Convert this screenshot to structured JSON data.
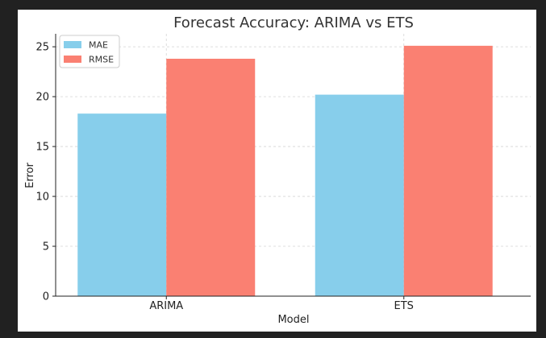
{
  "chart_data": {
    "type": "bar",
    "title": "Forecast Accuracy: ARIMA vs ETS",
    "xlabel": "Model",
    "ylabel": "Error",
    "categories": [
      "ARIMA",
      "ETS"
    ],
    "series": [
      {
        "name": "MAE",
        "values": [
          18.3,
          20.2
        ],
        "color": "#87ceeb"
      },
      {
        "name": "RMSE",
        "values": [
          23.8,
          25.1
        ],
        "color": "#fa8072"
      }
    ],
    "ylim": [
      0,
      26.3
    ],
    "yticks": [
      0,
      5,
      10,
      15,
      20,
      25
    ],
    "grid": true,
    "legend": "top-left"
  }
}
